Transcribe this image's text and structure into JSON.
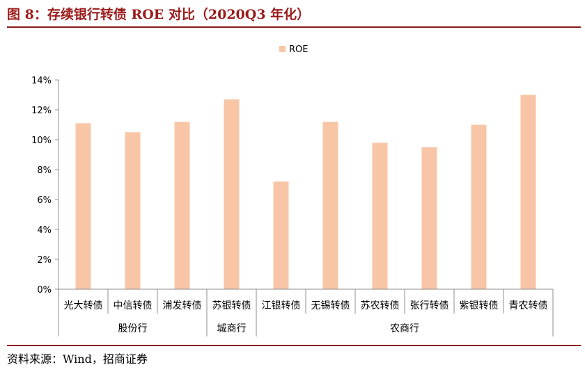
{
  "header": {
    "title": "图 8：存续银行转债 ROE 对比（2020Q3 年化）"
  },
  "footer": {
    "source": "资料来源：Wind，招商证券"
  },
  "chart_data": {
    "type": "bar",
    "categories": [
      "光大转债",
      "中信转债",
      "浦发转债",
      "苏银转债",
      "江银转债",
      "无锡转债",
      "苏农转债",
      "张行转债",
      "紫银转债",
      "青农转债"
    ],
    "groups": [
      {
        "label": "股份行",
        "count": 3
      },
      {
        "label": "城商行",
        "count": 1
      },
      {
        "label": "农商行",
        "count": 6
      }
    ],
    "series": [
      {
        "name": "ROE",
        "values": [
          11.1,
          10.5,
          11.2,
          12.7,
          7.2,
          11.2,
          9.8,
          9.5,
          11.0,
          13.0
        ],
        "color": "#F8C6A6"
      }
    ],
    "ylim": [
      0,
      14
    ],
    "yticks": [
      "0%",
      "2%",
      "4%",
      "6%",
      "8%",
      "10%",
      "12%",
      "14%"
    ],
    "legend_position": "top-center",
    "grid": false
  }
}
